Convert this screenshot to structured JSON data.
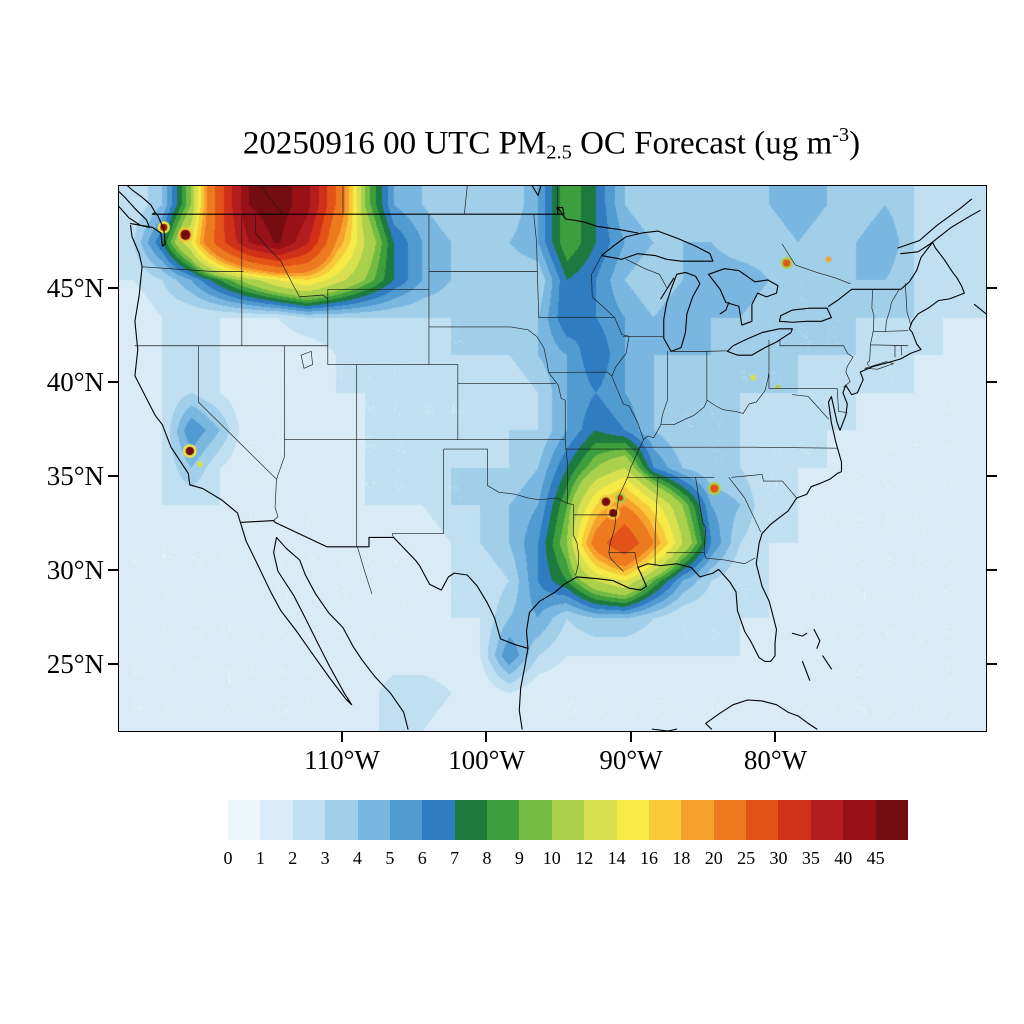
{
  "title": {
    "prefix": "20250916 00 UTC PM",
    "subscript": "2.5",
    "middle": " OC Forecast (ug m",
    "superscript": "-3",
    "suffix": ")"
  },
  "axes": {
    "lat_ticks": [
      {
        "label": "45°N",
        "lat": 45
      },
      {
        "label": "40°N",
        "lat": 40
      },
      {
        "label": "35°N",
        "lat": 35
      },
      {
        "label": "30°N",
        "lat": 30
      },
      {
        "label": "25°N",
        "lat": 25
      }
    ],
    "lon_ticks": [
      {
        "label": "110°W",
        "lon": -110
      },
      {
        "label": "100°W",
        "lon": -100
      },
      {
        "label": "90°W",
        "lon": -90
      },
      {
        "label": "80°W",
        "lon": -80
      }
    ]
  },
  "colorbar": {
    "boundary_labels": [
      "0",
      "1",
      "2",
      "3",
      "4",
      "5",
      "6",
      "7",
      "8",
      "9",
      "10",
      "12",
      "14",
      "16",
      "18",
      "20",
      "25",
      "30",
      "35",
      "40",
      "45"
    ],
    "colors": [
      "#edf6fb",
      "#d9ebf7",
      "#c0e0f2",
      "#a1cfea",
      "#7ab7e0",
      "#529bd1",
      "#2f7cc1",
      "#1d7a3f",
      "#3d9e3d",
      "#74bb43",
      "#abd14c",
      "#d9e04f",
      "#f5ea46",
      "#f8c939",
      "#f5a12c",
      "#ee7a1f",
      "#e35317",
      "#d03018",
      "#b41d1d",
      "#971117",
      "#730d11"
    ]
  },
  "chart_data": {
    "type": "heatmap",
    "title": "20250916 00 UTC PM2.5 OC Forecast (ug m-3)",
    "variable": "PM2.5 OC surface concentration forecast",
    "forecast_time": "20250916 00 UTC",
    "units": "ug m-3",
    "projection": "latlon",
    "domain": {
      "lon_min": -125.5,
      "lon_max": -65.5,
      "lat_min": 21.5,
      "lat_max": 50.5
    },
    "levels": [
      0,
      1,
      2,
      3,
      4,
      5,
      6,
      7,
      8,
      9,
      10,
      12,
      14,
      16,
      18,
      20,
      25,
      30,
      35,
      40,
      45
    ],
    "grid": {
      "lon_start": -124.5,
      "dlon": 2,
      "lat_start": 49.5,
      "dlat": -2,
      "ncols": 30,
      "nrows": 15,
      "values_ug_m3": [
        [
          2,
          4,
          10,
          28,
          45,
          48,
          42,
          25,
          10,
          5,
          4,
          3,
          3,
          3,
          5,
          9,
          7,
          4,
          3,
          3,
          3,
          3,
          4,
          5,
          4,
          3,
          4,
          3,
          2,
          2
        ],
        [
          3,
          7,
          14,
          28,
          40,
          46,
          36,
          20,
          12,
          7,
          5,
          4,
          4,
          4,
          5,
          9,
          7,
          5,
          4,
          4,
          4,
          3,
          3,
          4,
          3,
          4,
          5,
          3,
          2,
          2
        ],
        [
          2,
          3,
          5,
          8,
          11,
          14,
          16,
          13,
          10,
          7,
          5,
          4,
          3,
          3,
          3,
          7,
          6,
          4,
          3,
          4,
          5,
          5,
          4,
          3,
          3,
          4,
          4,
          3,
          3,
          2
        ],
        [
          1,
          2,
          2,
          2,
          2,
          2,
          3,
          3,
          3,
          3,
          3,
          3,
          3,
          4,
          4,
          7,
          6,
          5,
          4,
          5,
          4,
          4,
          3,
          3,
          3,
          3,
          3,
          3,
          2,
          2
        ],
        [
          1,
          2,
          3,
          2,
          1,
          1,
          1,
          2,
          2,
          2,
          2,
          3,
          3,
          3,
          4,
          5,
          7,
          5,
          4,
          4,
          4,
          3,
          3,
          3,
          3,
          3,
          2,
          2,
          2,
          1
        ],
        [
          1,
          2,
          3,
          2,
          1,
          1,
          1,
          2,
          2,
          2,
          2,
          2,
          2,
          2,
          3,
          5,
          6,
          5,
          4,
          3,
          3,
          3,
          3,
          3,
          2,
          2,
          2,
          2,
          1,
          1
        ],
        [
          1,
          2,
          6,
          4,
          1,
          1,
          1,
          1,
          2,
          2,
          2,
          2,
          2,
          3,
          3,
          5,
          7,
          6,
          4,
          3,
          3,
          3,
          2,
          2,
          2,
          2,
          1,
          1,
          1,
          1
        ],
        [
          1,
          2,
          4,
          2,
          1,
          1,
          1,
          2,
          2,
          2,
          2,
          3,
          3,
          3,
          4,
          7,
          10,
          12,
          6,
          4,
          3,
          3,
          2,
          2,
          2,
          1,
          1,
          1,
          1,
          1
        ],
        [
          1,
          2,
          2,
          2,
          1,
          1,
          1,
          1,
          2,
          2,
          2,
          3,
          3,
          4,
          5,
          9,
          16,
          20,
          15,
          10,
          5,
          4,
          2,
          2,
          1,
          1,
          1,
          1,
          1,
          1
        ],
        [
          1,
          1,
          1,
          1,
          1,
          1,
          1,
          1,
          1,
          1,
          1,
          2,
          3,
          4,
          6,
          10,
          22,
          30,
          20,
          12,
          6,
          3,
          2,
          2,
          1,
          1,
          1,
          1,
          1,
          1
        ],
        [
          1,
          1,
          1,
          1,
          1,
          1,
          1,
          1,
          1,
          1,
          1,
          2,
          2,
          3,
          6,
          8,
          12,
          14,
          9,
          5,
          3,
          2,
          2,
          1,
          1,
          1,
          1,
          1,
          1,
          1
        ],
        [
          1,
          1,
          1,
          1,
          1,
          1,
          1,
          1,
          1,
          1,
          1,
          2,
          2,
          4,
          5,
          3,
          4,
          4,
          3,
          2,
          2,
          2,
          2,
          1,
          1,
          1,
          1,
          1,
          1,
          1
        ],
        [
          1,
          1,
          1,
          1,
          1,
          1,
          1,
          1,
          1,
          1,
          1,
          1,
          2,
          6,
          3,
          2,
          2,
          2,
          2,
          2,
          2,
          2,
          1,
          1,
          1,
          1,
          1,
          1,
          1,
          1
        ],
        [
          1,
          1,
          1,
          1,
          1,
          1,
          1,
          1,
          1,
          3,
          3,
          2,
          1,
          2,
          1,
          1,
          1,
          1,
          1,
          1,
          1,
          1,
          1,
          1,
          1,
          1,
          1,
          1,
          1,
          1
        ],
        [
          1,
          1,
          1,
          1,
          1,
          1,
          1,
          1,
          2,
          2,
          2,
          1,
          1,
          1,
          1,
          1,
          1,
          1,
          1,
          1,
          1,
          1,
          1,
          1,
          1,
          1,
          1,
          1,
          1,
          1
        ]
      ]
    },
    "hotspots": [
      {
        "lon": -120.9,
        "lat": 47.9,
        "value": 48,
        "radius_deg": 0.35
      },
      {
        "lon": -122.4,
        "lat": 48.3,
        "value": 40,
        "radius_deg": 0.25
      },
      {
        "lon": -120.6,
        "lat": 36.4,
        "value": 45,
        "radius_deg": 0.3
      },
      {
        "lon": -119.9,
        "lat": 35.7,
        "value": 12,
        "radius_deg": 0.2
      },
      {
        "lon": -91.8,
        "lat": 33.7,
        "value": 48,
        "radius_deg": 0.3
      },
      {
        "lon": -91.3,
        "lat": 33.1,
        "value": 46,
        "radius_deg": 0.28
      },
      {
        "lon": -90.8,
        "lat": 33.9,
        "value": 32,
        "radius_deg": 0.2
      },
      {
        "lon": -84.3,
        "lat": 34.4,
        "value": 26,
        "radius_deg": 0.28
      },
      {
        "lon": -81.6,
        "lat": 40.3,
        "value": 12,
        "radius_deg": 0.2
      },
      {
        "lon": -79.9,
        "lat": 39.8,
        "value": 11,
        "radius_deg": 0.18
      },
      {
        "lon": -79.3,
        "lat": 46.4,
        "value": 28,
        "radius_deg": 0.25
      },
      {
        "lon": -76.4,
        "lat": 46.6,
        "value": 18,
        "radius_deg": 0.2
      }
    ]
  }
}
